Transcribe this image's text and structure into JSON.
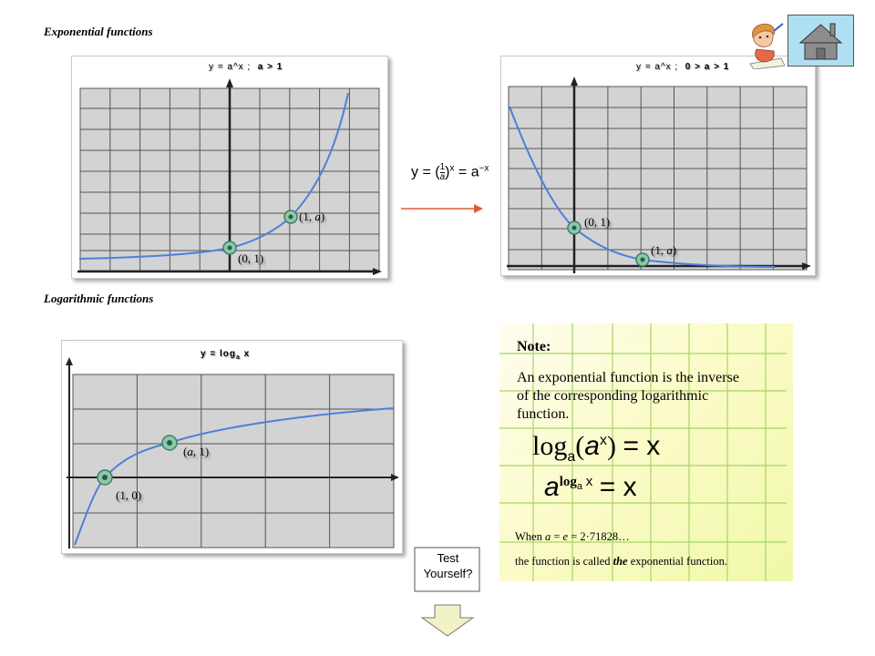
{
  "sections": {
    "exponential_title": "Exponential functions",
    "logarithmic_title": "Logarithmic functions"
  },
  "graphs": {
    "exp_growth": {
      "equation": "y = a^x ;",
      "condition": "a > 1",
      "point1": "(0, 1)",
      "point2_prefix": "(1, ",
      "point2_var": "a",
      "point2_suffix": ")"
    },
    "exp_decay": {
      "equation": "y = a^x ;",
      "condition": "0 > a > 1",
      "point1": "(0, 1)",
      "point2_prefix": "(1, ",
      "point2_var": "a",
      "point2_suffix": ")"
    },
    "log": {
      "equation_prefix": "y = log",
      "equation_sub": "a",
      "equation_suffix": "x",
      "point1": "(1, 0)",
      "point2_var": "a",
      "point2_prefix": "(",
      "point2_suffix": ", 1)"
    }
  },
  "center_formula": {
    "lhs": "y = (",
    "num": "1",
    "den": "a",
    "rhs_paren": ")",
    "exp": "x",
    "eq": "= a",
    "neg_exp": "−x"
  },
  "note": {
    "title": "Note:",
    "body": "An exponential function is the inverse of the corresponding logarithmic function.",
    "math1": {
      "log": "log",
      "sub": "a",
      "open": "(",
      "base": "a",
      "exp": "x",
      "close": ")",
      "equals": "= x"
    },
    "math2": {
      "base": "a",
      "exp_log": "log",
      "exp_sub": "a",
      "exp_x": "x",
      "equals": "= x"
    },
    "when_prefix": "When ",
    "when_a": "a",
    "when_eq": " = ",
    "when_e": "e",
    "when_value": " = 2·71828…",
    "function_line_prefix": "the function is called ",
    "function_line_the": "the",
    "function_line_suffix": " exponential function."
  },
  "buttons": {
    "test_yourself_line1": "Test",
    "test_yourself_line2": "Yourself?"
  },
  "colors": {
    "curve": "#4f7fd9",
    "grid_fill": "#d3d3d3",
    "note_grid": "#a8d468",
    "home_bg": "#aee0f2",
    "arrow": "#e05a3a"
  },
  "icons": {
    "home": "home-icon",
    "character": "student-character-icon",
    "arrow": "right-arrow-icon",
    "down_arrow": "down-arrow-icon"
  }
}
